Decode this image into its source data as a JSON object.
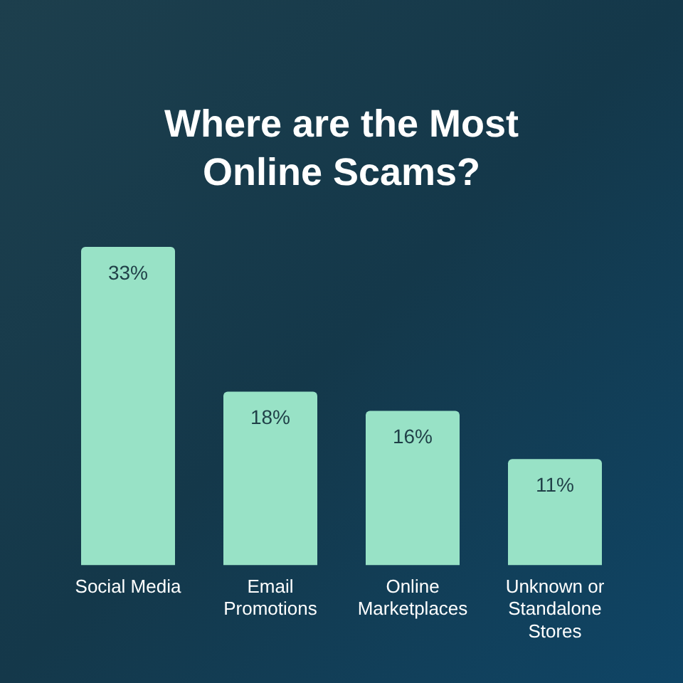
{
  "chart_data": {
    "type": "bar",
    "title": "Where are the Most Online Scams?",
    "categories": [
      "Social Media",
      "Email Promotions",
      "Online Marketplaces",
      "Unknown or Standalone Stores"
    ],
    "values": [
      33,
      18,
      16,
      11
    ],
    "value_labels": [
      "33%",
      "18%",
      "16%",
      "11%"
    ],
    "color": "#98e2c6",
    "grid": false,
    "legend": false
  }
}
